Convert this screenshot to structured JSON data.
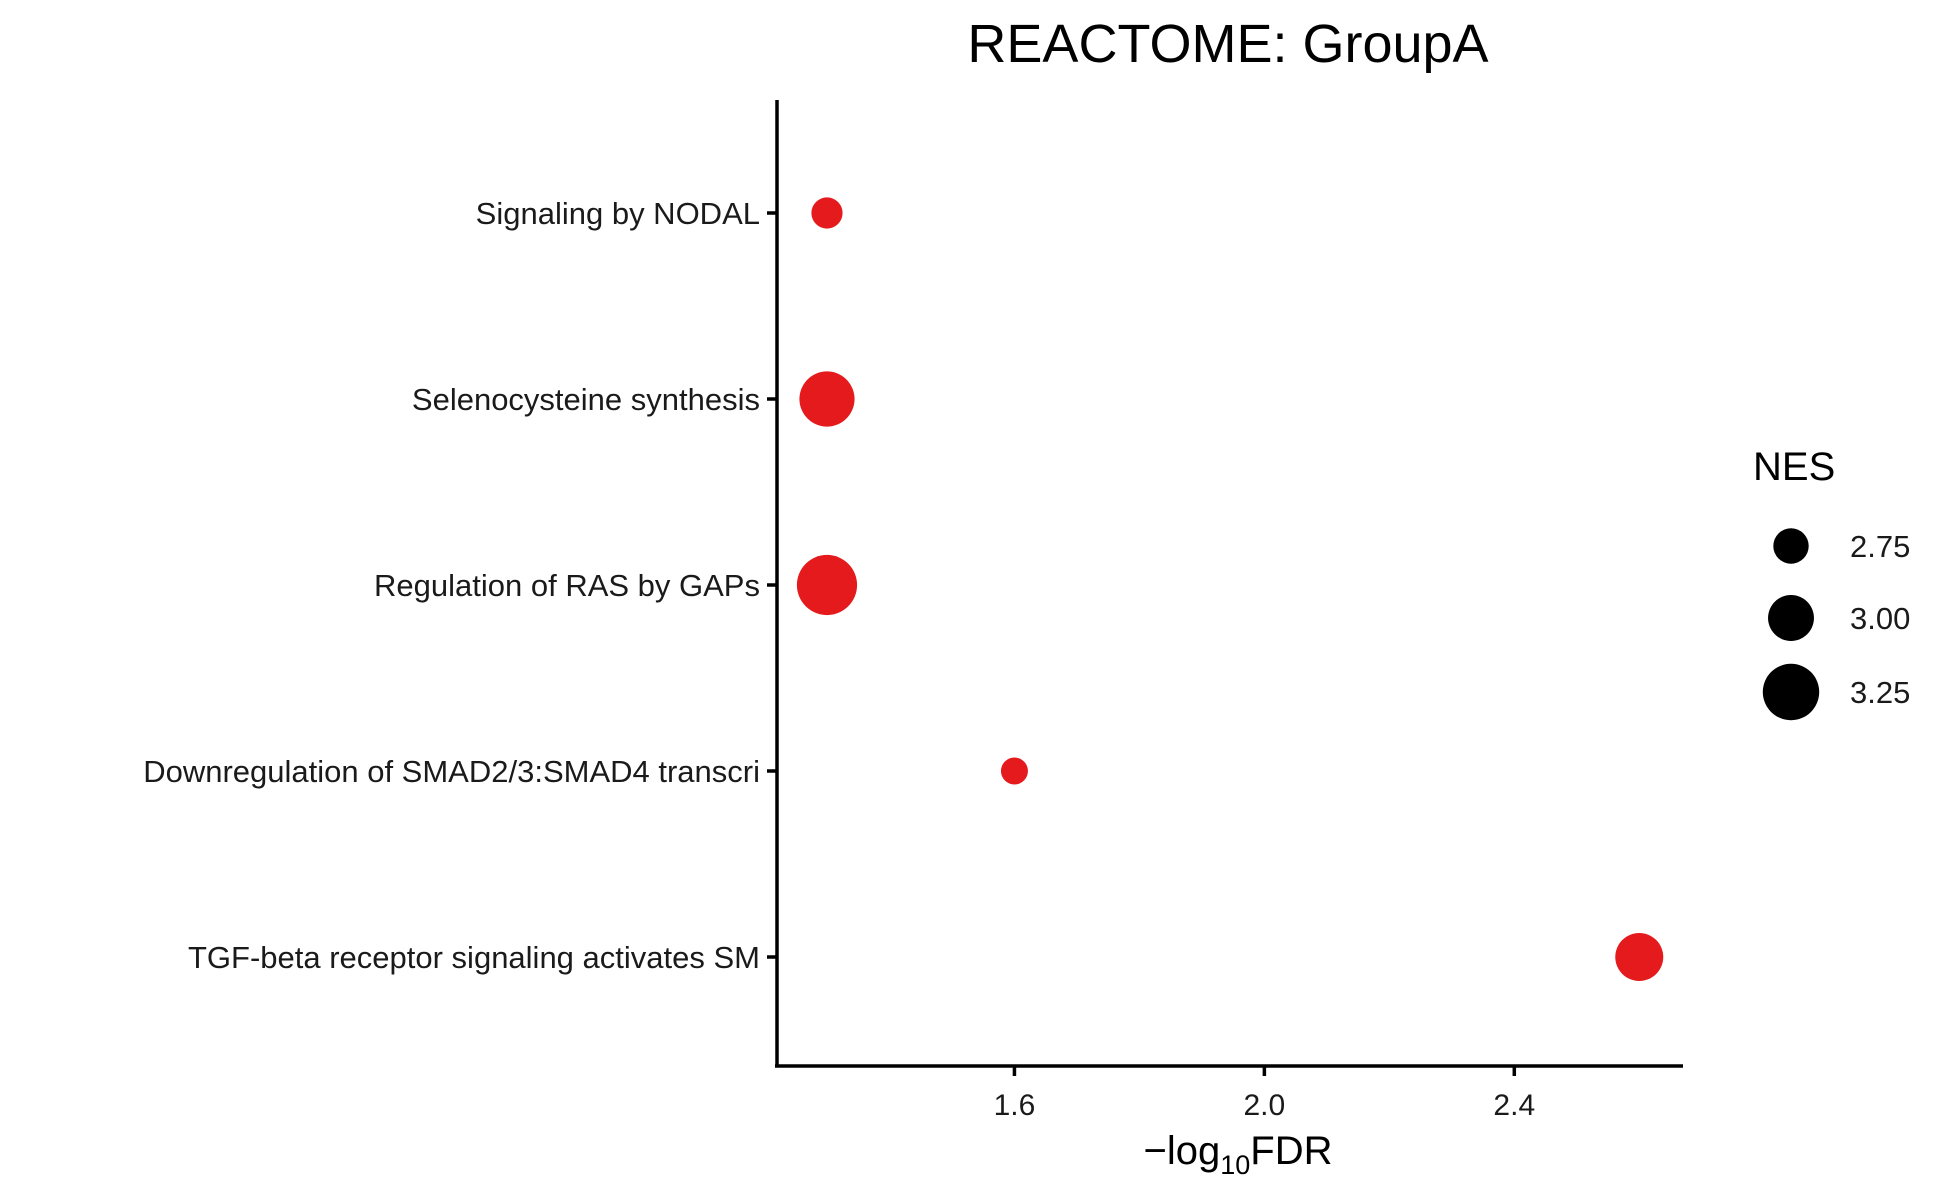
{
  "chart_data": {
    "type": "scatter",
    "title": "REACTOME: GroupA",
    "xlabel": {
      "prefix": "−log",
      "subscript": "10",
      "suffix": "FDR"
    },
    "ylabel": "",
    "xlim": [
      1.22,
      2.67
    ],
    "x_ticks": [
      1.6,
      2.0,
      2.4
    ],
    "x_tick_labels": [
      "1.6",
      "2.0",
      "2.4"
    ],
    "categories": [
      "Signaling by NODAL",
      "Selenocysteine synthesis",
      "Regulation of RAS by GAPs",
      "Downregulation of SMAD2/3:SMAD4 transcri",
      "TGF-beta receptor signaling activates SM"
    ],
    "series": [
      {
        "x": [
          1.3,
          1.3,
          1.3,
          1.6,
          2.6
        ],
        "size": [
          2.65,
          3.22,
          3.34,
          2.55,
          3.05
        ]
      }
    ],
    "color": "#e41a1c",
    "legend": {
      "title": "NES",
      "position": "right",
      "entries": [
        {
          "label": "2.75",
          "value": 2.75
        },
        {
          "label": "3.00",
          "value": 3.0
        },
        {
          "label": "3.25",
          "value": 3.25
        }
      ],
      "color": "#000000"
    },
    "grid": false
  }
}
